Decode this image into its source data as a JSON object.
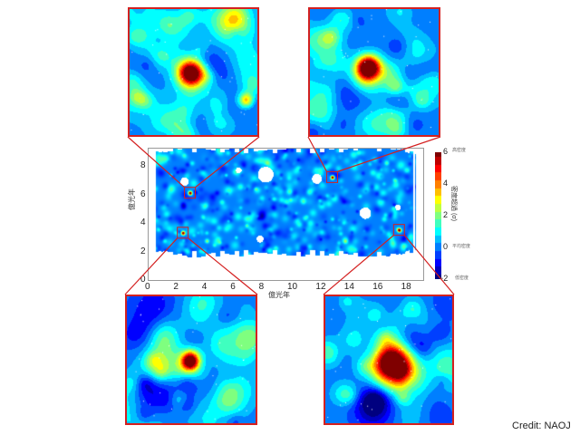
{
  "chart_data": {
    "type": "heatmap",
    "title": "",
    "xlabel": "億光年",
    "ylabel": "億光年",
    "xlim": [
      0,
      19.4
    ],
    "ylim": [
      0,
      9.2
    ],
    "xticks": [
      "0",
      "2",
      "4",
      "6",
      "8",
      "10",
      "12",
      "14",
      "16",
      "18"
    ],
    "yticks": [
      "0",
      "2",
      "4",
      "6",
      "8"
    ],
    "colorbar": {
      "label": "密度超過 (σ)",
      "range": [
        -2,
        6
      ],
      "ticks": [
        "−2",
        "0",
        "2",
        "4",
        "6"
      ],
      "tick_notes": {
        "high": "高密度",
        "mean": "平均密度",
        "low": "低密度"
      },
      "colormap": "jet"
    },
    "highlighted_regions": [
      {
        "x": 2.9,
        "y": 5.6,
        "inset": "top-left"
      },
      {
        "x": 12.9,
        "y": 6.7,
        "inset": "top-right"
      },
      {
        "x": 2.4,
        "y": 2.8,
        "inset": "bottom-left"
      },
      {
        "x": 17.6,
        "y": 3.0,
        "inset": "bottom-right"
      }
    ],
    "grid": false
  },
  "colors": {
    "inset_border": "#d42020",
    "connector": "#d42020"
  },
  "credit": "Credit: NAOJ"
}
